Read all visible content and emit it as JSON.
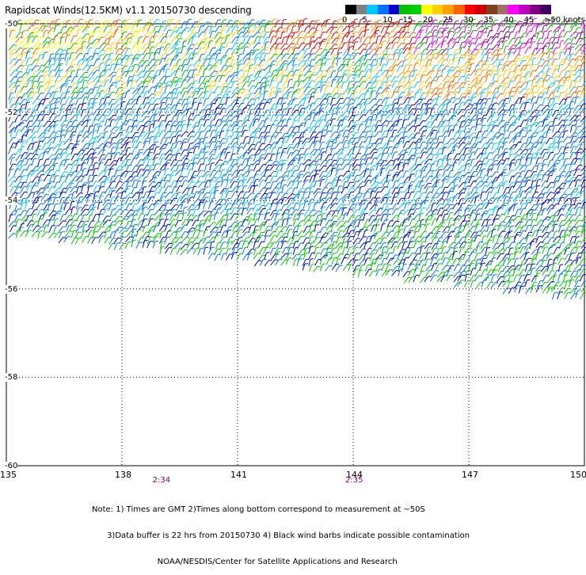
{
  "title": "Rapidscat Winds(12.5KM) v1.1 20150730 descending",
  "legend": {
    "colors": [
      "#000000",
      "#7f7f7f",
      "#00c8ff",
      "#0070ff",
      "#0000d0",
      "#00c000",
      "#00d000",
      "#ffff00",
      "#ffd000",
      "#ffa000",
      "#ff6000",
      "#ff0000",
      "#d00000",
      "#804020",
      "#a07060",
      "#ff00ff",
      "#c000c0",
      "#800080",
      "#400060"
    ],
    "labels": [
      "0",
      "5",
      "10",
      "15",
      "20",
      "25",
      "30",
      "35",
      "40",
      "45",
      ">50 knots"
    ]
  },
  "axes": {
    "x_ticks": [
      "135",
      "138",
      "141",
      "144",
      "147",
      "150"
    ],
    "y_ticks": [
      "-50",
      "-52",
      "-54",
      "-56",
      "-58",
      "-60"
    ],
    "lon_range": [
      135,
      150
    ],
    "lat_range": [
      -60,
      -50
    ],
    "grid": true
  },
  "time_labels": [
    {
      "text": "2:34",
      "lon": 139
    },
    {
      "text": "2:35",
      "lon": 144
    }
  ],
  "notes": [
    "Note: 1) Times are GMT 2)Times along bottom correspond to measurement at ~50S",
    "      3)Data buffer is 22 hrs from 20150730 4) Black wind barbs indicate possible contamination",
    "                          NOAA/NESDIS/Center for Satellite Applications and Research"
  ]
}
